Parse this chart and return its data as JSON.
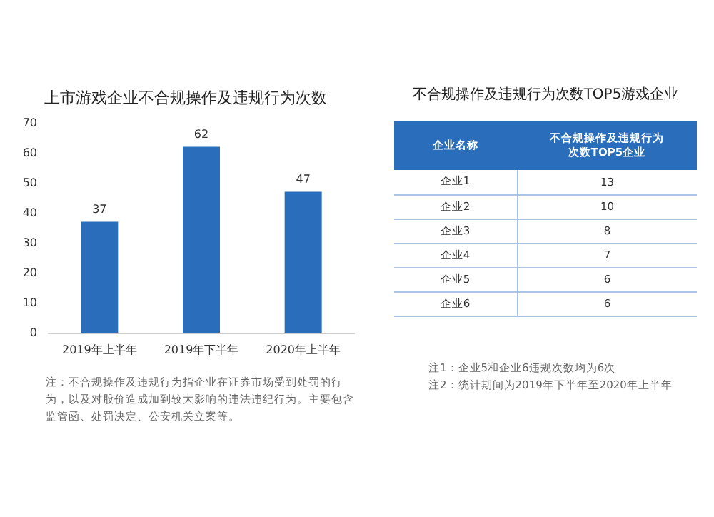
{
  "chart_data": [
    {
      "type": "bar",
      "title": "上市游戏企业不合规操作及违规行为次数",
      "categories": [
        "2019年上半年",
        "2019年下半年",
        "2020年上半年"
      ],
      "values": [
        37,
        62,
        47
      ],
      "color": "#2a6ebb",
      "ylim": [
        0,
        70
      ],
      "yticks": [
        0,
        10,
        20,
        30,
        40,
        50,
        60,
        70
      ],
      "grid": false,
      "data_labels": true,
      "annotations": [
        "注：不合规操作及违规行为指企业在证券市场受到处罚的行为，以及对股价造成加到较大影响的违法违纪行为。主要包含监管函、处罚决定、公安机关立案等。"
      ]
    },
    {
      "type": "other",
      "title": "不合规操作及违规行为次数TOP5游戏企业",
      "xlabel": "企业名称",
      "ylabel": "不合规操作及违规行为次数TOP5企业",
      "categories": [
        "企业1",
        "企业2",
        "企业3",
        "企业4",
        "企业5",
        "企业6"
      ],
      "values": [
        13,
        10,
        8,
        7,
        6,
        6
      ],
      "color": "#2a6ebb",
      "data_labels": true,
      "annotations": [
        "注1：企业5和企业6违规次数均为6次",
        "注2：统计期间为2019年下半年至2020年上半年"
      ]
    }
  ]
}
